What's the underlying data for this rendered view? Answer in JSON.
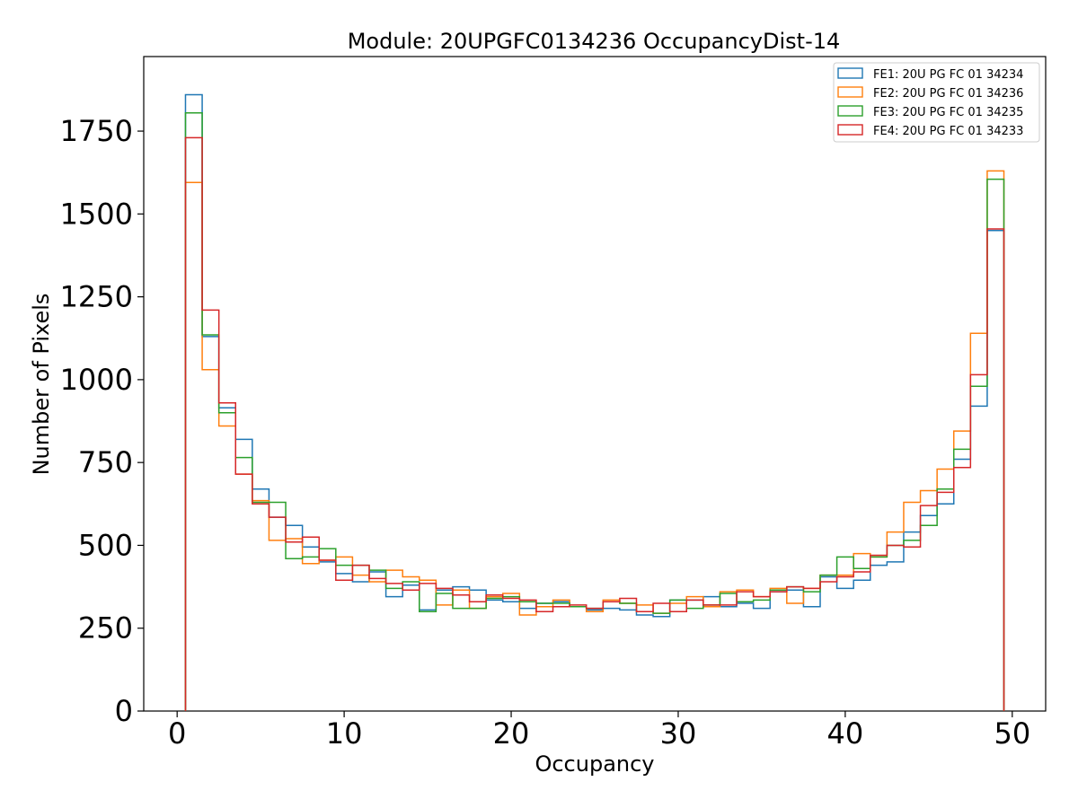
{
  "chart_data": {
    "type": "histogram-step",
    "title": "Module: 20UPGFC0134236 OccupancyDist-14",
    "xlabel": "Occupancy",
    "ylabel": "Number of Pixels",
    "xlim": [
      -2,
      52
    ],
    "ylim": [
      0,
      1975
    ],
    "xticks": [
      0,
      10,
      20,
      30,
      40,
      50
    ],
    "yticks": [
      0,
      250,
      500,
      750,
      1000,
      1250,
      1500,
      1750
    ],
    "bin_start": 0.5,
    "bin_width": 1,
    "legend_position": "top-right",
    "series": [
      {
        "name": "FE1: 20U PG FC 01 34234",
        "color": "#1f77b4",
        "values": [
          1860,
          1130,
          915,
          820,
          670,
          585,
          560,
          495,
          450,
          415,
          390,
          420,
          345,
          380,
          305,
          365,
          375,
          365,
          335,
          330,
          310,
          325,
          330,
          315,
          305,
          310,
          305,
          290,
          285,
          335,
          335,
          345,
          315,
          325,
          310,
          360,
          365,
          315,
          405,
          370,
          395,
          440,
          450,
          540,
          590,
          625,
          760,
          920,
          1450
        ]
      },
      {
        "name": "FE2: 20U PG FC 01 34236",
        "color": "#ff7f0e",
        "values": [
          1595,
          1030,
          860,
          715,
          635,
          515,
          520,
          445,
          455,
          465,
          410,
          390,
          425,
          405,
          395,
          320,
          365,
          310,
          345,
          355,
          290,
          315,
          335,
          315,
          300,
          335,
          325,
          320,
          295,
          325,
          345,
          315,
          360,
          365,
          345,
          370,
          325,
          370,
          410,
          410,
          475,
          465,
          540,
          630,
          665,
          730,
          845,
          1140,
          1630
        ]
      },
      {
        "name": "FE3: 20U PG FC 01 34235",
        "color": "#2ca02c",
        "values": [
          1805,
          1135,
          900,
          765,
          630,
          630,
          460,
          465,
          490,
          440,
          440,
          425,
          370,
          390,
          300,
          355,
          310,
          310,
          340,
          345,
          330,
          325,
          325,
          315,
          310,
          330,
          325,
          300,
          295,
          335,
          310,
          320,
          355,
          330,
          335,
          365,
          375,
          360,
          410,
          465,
          430,
          465,
          500,
          515,
          560,
          670,
          790,
          980,
          1605
        ]
      },
      {
        "name": "FE4: 20U PG FC 01 34233",
        "color": "#d62728",
        "values": [
          1730,
          1210,
          930,
          715,
          625,
          585,
          510,
          525,
          455,
          395,
          440,
          400,
          385,
          365,
          385,
          370,
          350,
          330,
          350,
          340,
          335,
          300,
          315,
          320,
          310,
          330,
          340,
          300,
          325,
          300,
          335,
          320,
          320,
          360,
          345,
          360,
          375,
          370,
          390,
          405,
          420,
          470,
          500,
          495,
          620,
          660,
          735,
          1015,
          1455
        ]
      }
    ]
  }
}
